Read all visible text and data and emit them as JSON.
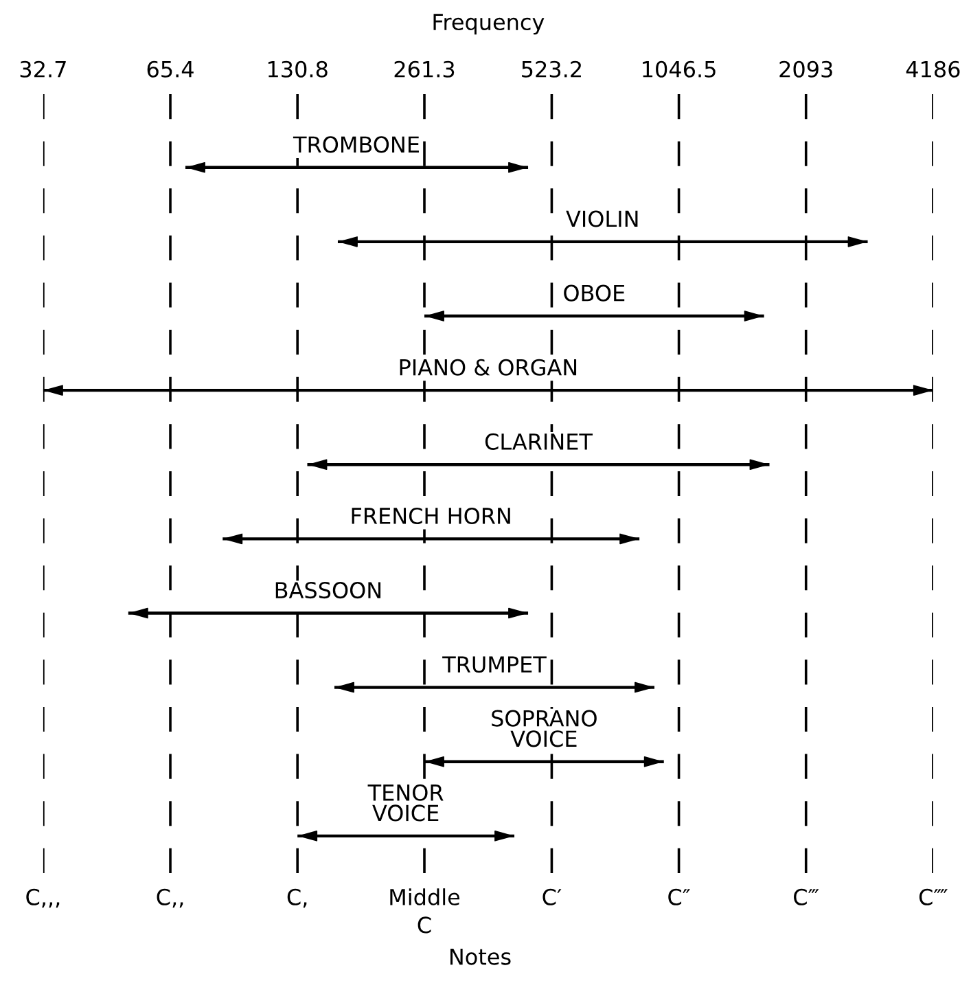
{
  "chart_data": {
    "type": "bar",
    "orientation": "horizontal",
    "log": "x",
    "categories": [
      "TROMBONE",
      "VIOLIN",
      "OBOE",
      "PIANO & ORGAN",
      "CLARINET",
      "FRENCH HORN",
      "BASSOON",
      "TRUMPET",
      "SOPRANO\nVOICE",
      "TENOR\nVOICE"
    ],
    "base": [
      71,
      163,
      261.3,
      32.7,
      138,
      87,
      52,
      160,
      261.3,
      130.8
    ],
    "values": [
      389,
      2767,
      1404,
      4153.3,
      1577,
      757,
      408,
      756,
      703,
      296
    ],
    "color": "#000000",
    "xlabel": "Frequency",
    "xlim": [
      32.7,
      4186
    ],
    "xticks": [
      32.7,
      65.4,
      130.8,
      261.3,
      523.2,
      1046.5,
      2093,
      4186
    ],
    "annotations": [
      "C,,,",
      "C,,",
      "C,",
      "Middle\nC",
      "C′",
      "C″",
      "C‴",
      "C⁗",
      "Notes"
    ],
    "grid": "x",
    "line_style": "dashed",
    "legend": false
  }
}
